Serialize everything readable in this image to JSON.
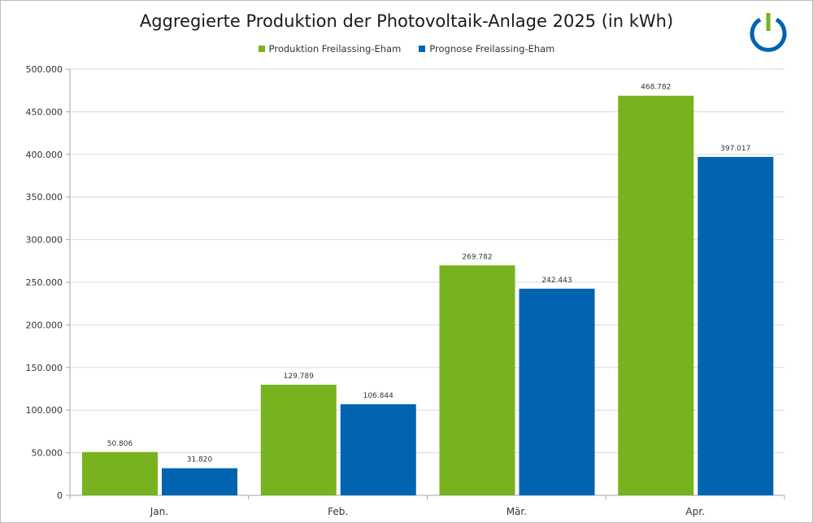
{
  "chart_data": {
    "type": "bar",
    "title": "Aggregierte Produktion der Photovoltaik-Anlage 2025 (in kWh)",
    "categories": [
      "Jan.",
      "Feb.",
      "Mär.",
      "Apr."
    ],
    "series": [
      {
        "name": "Produktion Freilassing-Eham",
        "color": "#77b31e",
        "values": [
          50806,
          129789,
          269782,
          468782
        ],
        "labels": [
          "50.806",
          "129.789",
          "269.782",
          "468.782"
        ]
      },
      {
        "name": "Prognose Freilassing-Eham",
        "color": "#0064b0",
        "values": [
          31820,
          106844,
          242443,
          397017
        ],
        "labels": [
          "31.820",
          "106.844",
          "242.443",
          "397.017"
        ]
      }
    ],
    "ylim": [
      0,
      500000
    ],
    "yticks": [
      0,
      50000,
      100000,
      150000,
      200000,
      250000,
      300000,
      350000,
      400000,
      450000,
      500000
    ],
    "ytick_labels": [
      "0",
      "50.000",
      "100.000",
      "150.000",
      "200.000",
      "250.000",
      "300.000",
      "350.000",
      "400.000",
      "450.000",
      "500.000"
    ],
    "grid": true,
    "legend_position": "top"
  },
  "logo": {
    "ring_color": "#0064b0",
    "bar_color": "#77b31e",
    "icon": "power-icon"
  }
}
